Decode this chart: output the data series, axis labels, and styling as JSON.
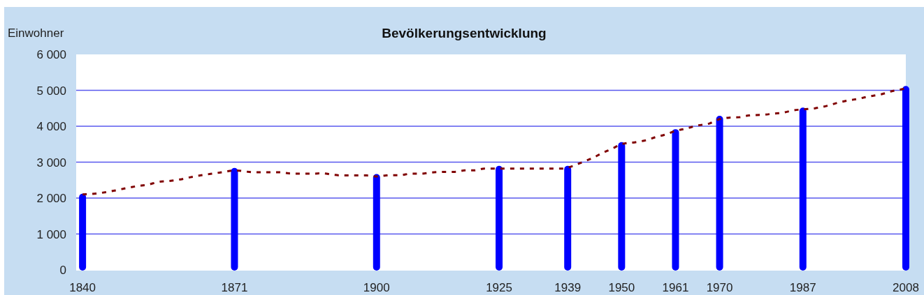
{
  "chart_data": {
    "type": "bar",
    "title": "Bevölkerungsentwicklung",
    "ylabel": "Einwohner",
    "x": [
      1840,
      1871,
      1900,
      1925,
      1939,
      1950,
      1961,
      1970,
      1987,
      2008
    ],
    "xlim": [
      1838.7,
      2008
    ],
    "xticks": [
      1840,
      1871,
      1900,
      1925,
      1939,
      1950,
      1961,
      1970,
      1987,
      2008
    ],
    "ylim": [
      0,
      6000
    ],
    "yticks": [
      0,
      {
        "value": 1000,
        "label": "1 000"
      },
      {
        "value": 2000,
        "label": "2 000"
      },
      {
        "value": 3000,
        "label": "3 000"
      },
      {
        "value": 4000,
        "label": "4 000"
      },
      {
        "value": 5000,
        "label": "5 000"
      },
      {
        "value": 6000,
        "label": "6 000"
      }
    ],
    "grid": "y",
    "series": [
      {
        "color": "#0000ff",
        "values": [
          2100,
          2820,
          2650,
          2880,
          2880,
          3540,
          3900,
          4270,
          4500,
          5100
        ]
      },
      {
        "type": "line",
        "color": "#800000",
        "line_style": "dashed",
        "x": [
          1840,
          1843,
          1845,
          1847,
          1849,
          1851,
          1853.5,
          1855.5,
          1858,
          1860,
          1862,
          1864.5,
          1867,
          1869,
          1871,
          1875,
          1880,
          1883,
          1887,
          1889,
          1891,
          1893,
          1898,
          1900,
          1902,
          1905,
          1907,
          1909,
          1911,
          1914,
          1916,
          1918,
          1920,
          1922,
          1938,
          1940,
          1942,
          1944,
          1946,
          1948,
          1950,
          1953,
          1955,
          1957,
          1959,
          1961,
          1963,
          1965.5,
          1968,
          1970,
          1972,
          1974,
          1976,
          1979,
          1981,
          1983,
          1985,
          1987,
          1989.5,
          1992,
          1994,
          1996,
          1998.5,
          2000.5,
          2003,
          2005,
          2007.5,
          2008
        ],
        "values": [
          2100,
          2130,
          2170,
          2220,
          2280,
          2330,
          2380,
          2450,
          2480,
          2520,
          2580,
          2640,
          2690,
          2730,
          2770,
          2720,
          2720,
          2680,
          2680,
          2690,
          2650,
          2630,
          2630,
          2600,
          2630,
          2640,
          2680,
          2680,
          2710,
          2730,
          2730,
          2770,
          2770,
          2820,
          2820,
          2890,
          3000,
          3110,
          3250,
          3370,
          3500,
          3560,
          3610,
          3700,
          3770,
          3870,
          3930,
          4020,
          4080,
          4200,
          4240,
          4250,
          4300,
          4320,
          4350,
          4380,
          4440,
          4470,
          4500,
          4570,
          4650,
          4710,
          4770,
          4830,
          4890,
          4970,
          5040,
          5060
        ]
      }
    ]
  }
}
